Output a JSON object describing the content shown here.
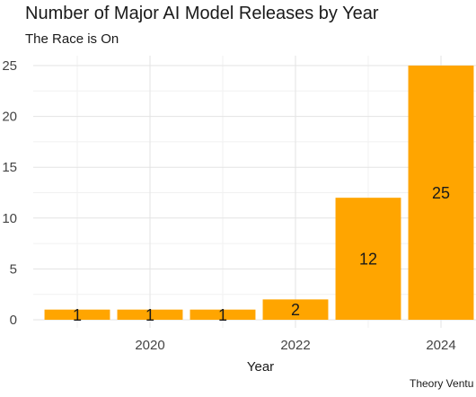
{
  "chart_data": {
    "type": "bar",
    "title": "Number of Major AI Model Releases by Year",
    "subtitle": "The Race is On",
    "xlabel": "Year",
    "ylabel": "",
    "caption": "Theory Ventu",
    "x": [
      2019,
      2020,
      2021,
      2022,
      2023,
      2024
    ],
    "values": [
      1,
      1,
      1,
      2,
      12,
      25
    ],
    "data_labels": [
      "1",
      "1",
      "1",
      "2",
      "12",
      "25"
    ],
    "xlim": [
      2018.15,
      2024.55
    ],
    "ylim": [
      0,
      25.5
    ],
    "x_ticks": [
      2020,
      2022,
      2024
    ],
    "x_tick_labels": [
      "2020",
      "2022",
      "2024"
    ],
    "y_ticks": [
      0,
      5,
      10,
      15,
      20,
      25
    ],
    "y_tick_labels": [
      "0",
      "5",
      "10",
      "15",
      "20",
      "25"
    ],
    "bar_color": "#ffa500",
    "grid": true,
    "legend": "none"
  }
}
